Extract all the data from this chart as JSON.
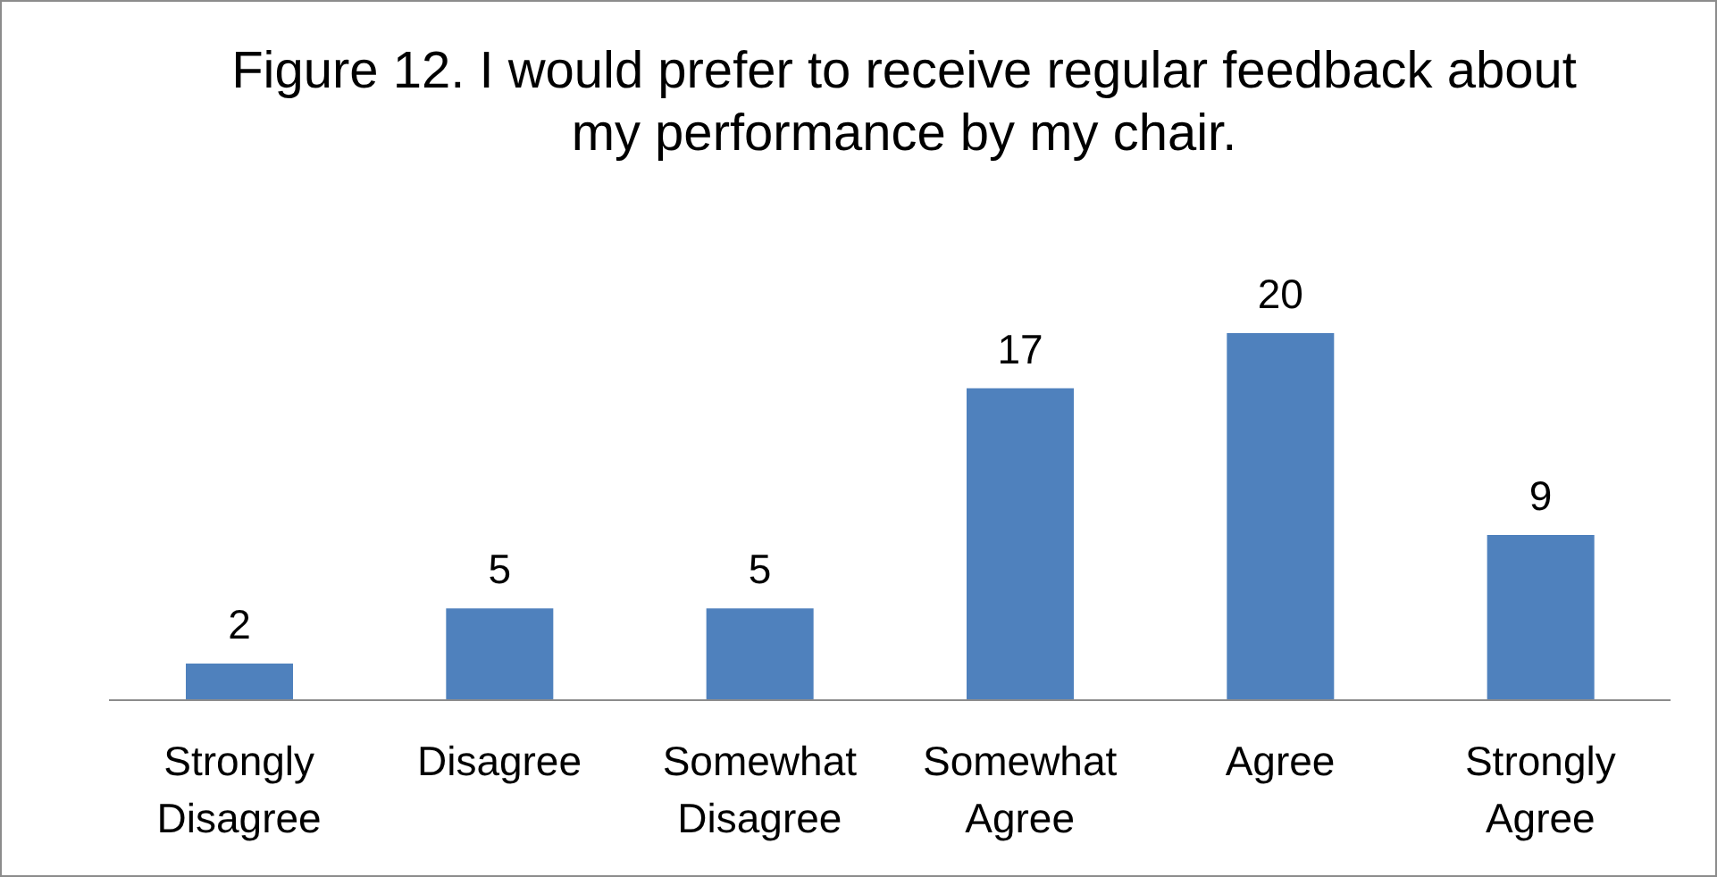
{
  "chart_data": {
    "type": "bar",
    "title": "Figure 12. I would prefer to receive regular feedback about my performance by my chair.",
    "categories": [
      "Strongly Disagree",
      "Disagree",
      "Somewhat Disagree",
      "Somewhat Agree",
      "Agree",
      "Strongly Agree"
    ],
    "values": [
      2,
      5,
      5,
      17,
      20,
      9
    ],
    "color": "#4f81bd",
    "data_labels": true,
    "grid": false,
    "legend": false
  }
}
